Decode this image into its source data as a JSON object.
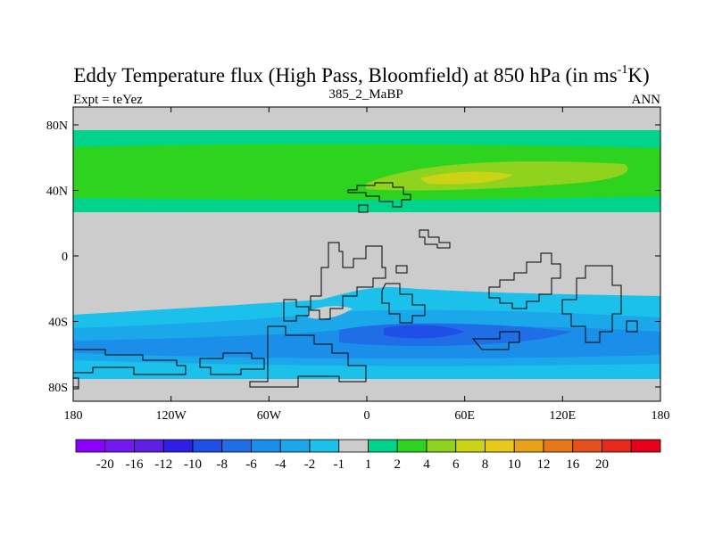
{
  "chart_data": {
    "type": "heatmap",
    "title": "Eddy Temperature flux (High Pass, Bloomfield) at 850 hPa (in ms",
    "title_superscript": "-1",
    "title_end": "K)",
    "left_label": "Expt = teYez",
    "center_label": "385_2_MaBP",
    "right_label": "ANN",
    "x_ticks": [
      "180",
      "120W",
      "60W",
      "0",
      "60E",
      "120E",
      "180"
    ],
    "y_ticks": [
      "80N",
      "40N",
      "0",
      "40S",
      "80S"
    ],
    "x_range": [
      -180,
      180
    ],
    "y_range": [
      -90,
      90
    ],
    "colorbar": {
      "colors": [
        "#8c00ff",
        "#7418f0",
        "#5e1fe6",
        "#2f1fe6",
        "#1f4fe6",
        "#1f6ee6",
        "#1a8ee8",
        "#1aa8ea",
        "#1bc1ea",
        "#cccccc",
        "#00d48c",
        "#2ed31f",
        "#8fd31f",
        "#cbd315",
        "#e8c81a",
        "#e8a21a",
        "#e6781a",
        "#e6501a",
        "#e62a1a",
        "#e6001a"
      ],
      "labels": [
        "-20",
        "-16",
        "-12",
        "-10",
        "-8",
        "-6",
        "-4",
        "-2",
        "-1",
        "1",
        "2",
        "4",
        "6",
        "8",
        "10",
        "12",
        "16",
        "20"
      ]
    }
  }
}
